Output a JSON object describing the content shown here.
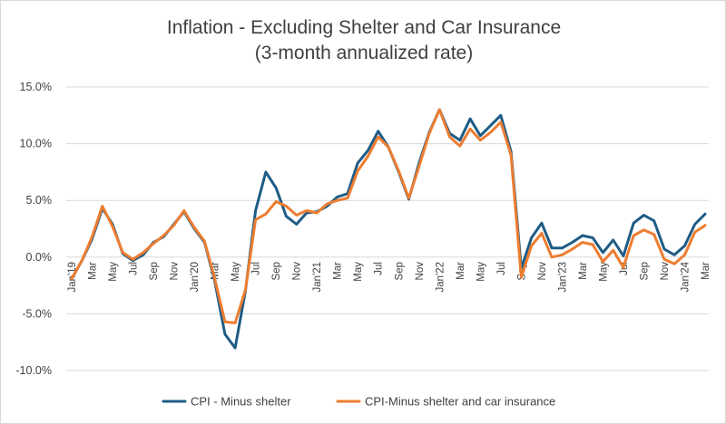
{
  "chart_data": {
    "type": "line",
    "title": "Inflation - Excluding Shelter and Car Insurance",
    "subtitle": "(3-month annualized rate)",
    "xlabel": "",
    "ylabel": "",
    "ylim": [
      -10,
      15
    ],
    "y_ticks": [
      15,
      10,
      5,
      0,
      -5,
      -10
    ],
    "y_tick_labels": [
      "15.0%",
      "10.0%",
      "5.0%",
      "0.0%",
      "-5.0%",
      "-10.0%"
    ],
    "grid": true,
    "legend_position": "bottom",
    "x": [
      "Jan'19",
      "Feb'19",
      "Mar'19",
      "Apr'19",
      "May'19",
      "Jun'19",
      "Jul'19",
      "Aug'19",
      "Sep'19",
      "Oct'19",
      "Nov'19",
      "Dec'19",
      "Jan'20",
      "Feb'20",
      "Mar'20",
      "Apr'20",
      "May'20",
      "Jun'20",
      "Jul'20",
      "Aug'20",
      "Sep'20",
      "Oct'20",
      "Nov'20",
      "Dec'20",
      "Jan'21",
      "Feb'21",
      "Mar'21",
      "Apr'21",
      "May'21",
      "Jun'21",
      "Jul'21",
      "Aug'21",
      "Sep'21",
      "Oct'21",
      "Nov'21",
      "Dec'21",
      "Jan'22",
      "Feb'22",
      "Mar'22",
      "Apr'22",
      "May'22",
      "Jun'22",
      "Jul'22",
      "Aug'22",
      "Sep'22",
      "Oct'22",
      "Nov'22",
      "Dec'22",
      "Jan'23",
      "Feb'23",
      "Mar'23",
      "Apr'23",
      "May'23",
      "Jun'23",
      "Jul'23",
      "Aug'23",
      "Sep'23",
      "Oct'23",
      "Nov'23",
      "Dec'23",
      "Jan'24",
      "Feb'24",
      "Mar'24"
    ],
    "x_tick_labels": [
      "Jan'19",
      "",
      "Mar",
      "",
      "May",
      "",
      "Jul",
      "",
      "Sep",
      "",
      "Nov",
      "",
      "Jan'20",
      "",
      "Mar",
      "",
      "May",
      "",
      "Jul",
      "",
      "Sep",
      "",
      "Nov",
      "",
      "Jan'21",
      "",
      "Mar",
      "",
      "May",
      "",
      "Jul",
      "",
      "Sep",
      "",
      "Nov",
      "",
      "Jan'22",
      "",
      "Mar",
      "",
      "May",
      "",
      "Jul",
      "",
      "Sep",
      "",
      "Nov",
      "",
      "Jan'23",
      "",
      "Mar",
      "",
      "May",
      "",
      "Jul",
      "",
      "Sep",
      "",
      "Nov",
      "",
      "Jan'24",
      "",
      "Mar"
    ],
    "series": [
      {
        "name": "CPI - Minus shelter",
        "color": "#1f5c85",
        "values": [
          -1.9,
          -0.3,
          1.6,
          4.3,
          2.9,
          0.3,
          -0.3,
          0.2,
          1.3,
          1.8,
          2.9,
          4.0,
          2.5,
          1.3,
          -2.1,
          -6.8,
          -8.0,
          -3.0,
          4.1,
          7.5,
          6.1,
          3.6,
          2.9,
          3.9,
          4.0,
          4.5,
          5.3,
          5.6,
          8.3,
          9.4,
          11.1,
          9.7,
          7.5,
          5.1,
          8.3,
          11.0,
          13.0,
          10.9,
          10.3,
          12.2,
          10.7,
          11.6,
          12.5,
          9.3,
          -1.0,
          1.7,
          3.0,
          0.8,
          0.8,
          1.3,
          1.9,
          1.7,
          0.4,
          1.5,
          0.1,
          3.0,
          3.7,
          3.2,
          0.7,
          0.2,
          1.0,
          2.9,
          3.8
        ]
      },
      {
        "name": "CPI-Minus shelter and car insurance",
        "color": "#ed7d31",
        "values": [
          -1.9,
          -0.3,
          1.8,
          4.5,
          2.7,
          0.4,
          -0.2,
          0.4,
          1.2,
          1.9,
          2.8,
          4.1,
          2.6,
          1.4,
          -1.9,
          -5.7,
          -5.8,
          -2.9,
          3.3,
          3.8,
          4.9,
          4.5,
          3.7,
          4.1,
          3.9,
          4.7,
          5.0,
          5.2,
          7.6,
          8.9,
          10.6,
          9.7,
          7.6,
          5.2,
          8.0,
          10.9,
          13.0,
          10.6,
          9.8,
          11.3,
          10.3,
          11.0,
          11.9,
          9.0,
          -1.8,
          1.0,
          2.1,
          0.0,
          0.2,
          0.7,
          1.3,
          1.1,
          -0.4,
          0.6,
          -0.9,
          1.9,
          2.4,
          2.0,
          -0.2,
          -0.6,
          0.2,
          2.2,
          2.8
        ]
      }
    ]
  }
}
